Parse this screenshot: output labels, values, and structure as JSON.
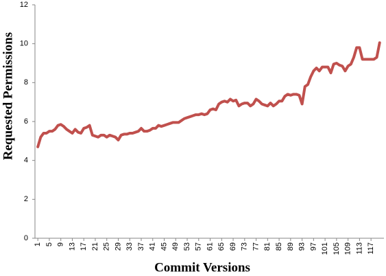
{
  "chart_data": {
    "type": "line",
    "xlabel": "Commit Versions",
    "ylabel": "Requested Permissions",
    "x": [
      1,
      2,
      3,
      4,
      5,
      6,
      7,
      8,
      9,
      10,
      11,
      12,
      13,
      14,
      15,
      16,
      17,
      18,
      19,
      20,
      21,
      22,
      23,
      24,
      25,
      26,
      27,
      28,
      29,
      30,
      31,
      32,
      33,
      34,
      35,
      36,
      37,
      38,
      39,
      40,
      41,
      42,
      43,
      44,
      45,
      46,
      47,
      48,
      49,
      50,
      51,
      52,
      53,
      54,
      55,
      56,
      57,
      58,
      59,
      60,
      61,
      62,
      63,
      64,
      65,
      66,
      67,
      68,
      69,
      70,
      71,
      72,
      73,
      74,
      75,
      76,
      77,
      78,
      79,
      80,
      81,
      82,
      83,
      84,
      85,
      86,
      87,
      88,
      89,
      90,
      91,
      92,
      93,
      94,
      95,
      96,
      97,
      98,
      99,
      100,
      101,
      102,
      103,
      104,
      105,
      106,
      107,
      108,
      109,
      110,
      111,
      112,
      113,
      114,
      115,
      116,
      117,
      118,
      119,
      120
    ],
    "values": [
      4.7,
      5.2,
      5.4,
      5.4,
      5.5,
      5.5,
      5.6,
      5.8,
      5.85,
      5.75,
      5.6,
      5.5,
      5.4,
      5.6,
      5.45,
      5.4,
      5.65,
      5.7,
      5.8,
      5.3,
      5.25,
      5.2,
      5.3,
      5.3,
      5.2,
      5.3,
      5.25,
      5.2,
      5.05,
      5.3,
      5.35,
      5.35,
      5.4,
      5.4,
      5.45,
      5.5,
      5.65,
      5.5,
      5.5,
      5.55,
      5.65,
      5.65,
      5.8,
      5.75,
      5.8,
      5.85,
      5.9,
      5.95,
      5.95,
      5.95,
      6.05,
      6.15,
      6.2,
      6.25,
      6.3,
      6.35,
      6.35,
      6.4,
      6.35,
      6.4,
      6.6,
      6.65,
      6.6,
      6.9,
      7.0,
      7.05,
      7.0,
      7.15,
      7.05,
      7.1,
      6.8,
      6.9,
      6.95,
      6.95,
      6.8,
      6.9,
      7.15,
      7.05,
      6.9,
      6.85,
      6.8,
      6.95,
      6.8,
      6.9,
      7.05,
      7.05,
      7.3,
      7.4,
      7.35,
      7.4,
      7.4,
      7.35,
      6.9,
      7.8,
      7.9,
      8.3,
      8.6,
      8.75,
      8.6,
      8.8,
      8.8,
      8.8,
      8.5,
      8.95,
      9.0,
      8.9,
      8.85,
      8.6,
      8.85,
      8.95,
      9.3,
      9.8,
      9.8,
      9.2,
      9.2,
      9.2,
      9.2,
      9.2,
      9.3,
      10.05
    ],
    "color": "#c0504d",
    "xlim": [
      0,
      121.5
    ],
    "xticks": [
      1,
      5,
      9,
      13,
      17,
      21,
      25,
      29,
      33,
      37,
      41,
      45,
      49,
      53,
      57,
      61,
      65,
      69,
      73,
      77,
      81,
      85,
      89,
      93,
      97,
      101,
      105,
      109,
      113,
      117
    ],
    "ylim": [
      0,
      12
    ],
    "yticks": [
      0,
      2,
      4,
      6,
      8,
      10,
      12
    ],
    "grid": false
  }
}
